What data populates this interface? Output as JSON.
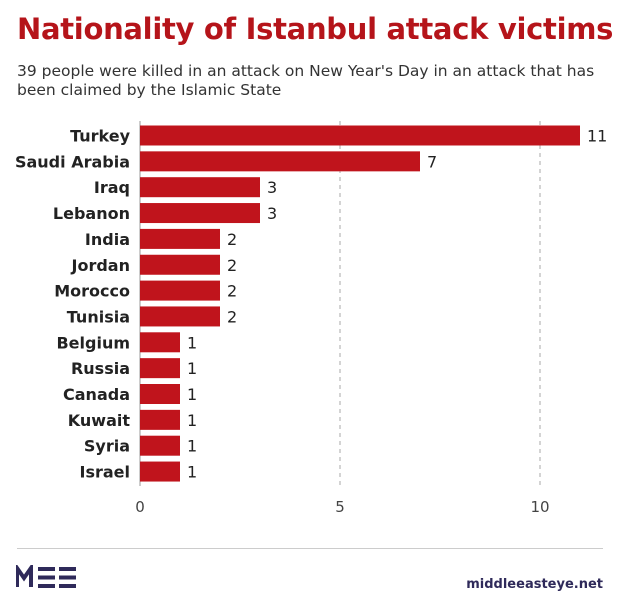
{
  "header": {
    "title": "Nationality of Istanbul attack victims",
    "subtitle": "39 people were killed in an attack on New Year's Day in an attack that has been claimed by the Islamic State"
  },
  "chart_data": {
    "type": "bar",
    "orientation": "horizontal",
    "categories": [
      "Turkey",
      "Saudi Arabia",
      "Iraq",
      "Lebanon",
      "India",
      "Jordan",
      "Morocco",
      "Tunisia",
      "Belgium",
      "Russia",
      "Canada",
      "Kuwait",
      "Syria",
      "Israel"
    ],
    "values": [
      11,
      7,
      3,
      3,
      2,
      2,
      2,
      2,
      1,
      1,
      1,
      1,
      1,
      1
    ],
    "xlim": [
      0,
      11
    ],
    "xticks": [
      0,
      5,
      10
    ],
    "grid": true,
    "bar_color": "#c0141c",
    "data_labels": true
  },
  "footer": {
    "site": "middleeasteye.net",
    "logo_color": "#2f2a5a"
  }
}
